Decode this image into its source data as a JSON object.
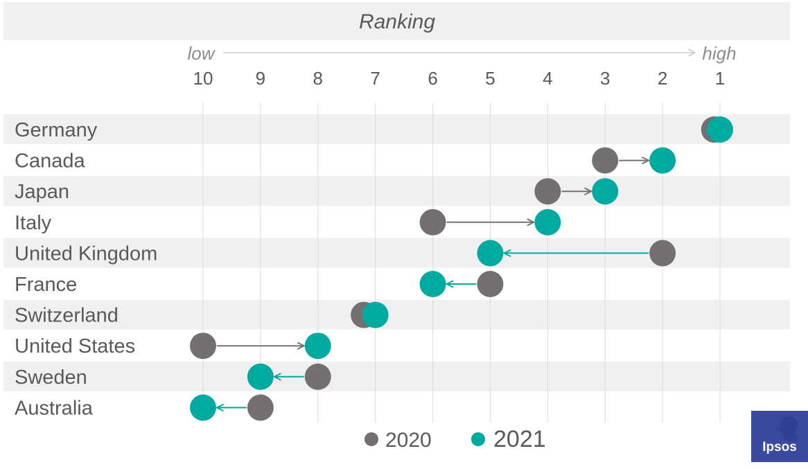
{
  "chart_data": {
    "type": "dumbbell",
    "title": "Ranking",
    "direction": {
      "low": "low",
      "high": "high"
    },
    "x_ticks": [
      10,
      9,
      8,
      7,
      6,
      5,
      4,
      3,
      2,
      1
    ],
    "xlim": [
      10,
      1
    ],
    "categories": [
      "Germany",
      "Canada",
      "Japan",
      "Italy",
      "United Kingdom",
      "France",
      "Switzerland",
      "United States",
      "Sweden",
      "Australia"
    ],
    "series": [
      {
        "name": "2020",
        "color": "#747070",
        "values": [
          1.1,
          3,
          4,
          6,
          2,
          5,
          7.2,
          10,
          8,
          9
        ]
      },
      {
        "name": "2021",
        "color": "#00aaa0",
        "values": [
          1,
          2,
          3,
          4,
          5,
          6,
          7,
          8,
          9,
          10
        ]
      }
    ],
    "grid": true,
    "legend": "bottom-center"
  },
  "colors": {
    "band": "#f0f0f0",
    "grid": "#dcdcdc",
    "text": "#595959",
    "light_text": "#8c8c8c",
    "logo": "#3a4a9e"
  },
  "logo": {
    "text": "Ipsos",
    "icon": "head-silhouette-icon"
  }
}
